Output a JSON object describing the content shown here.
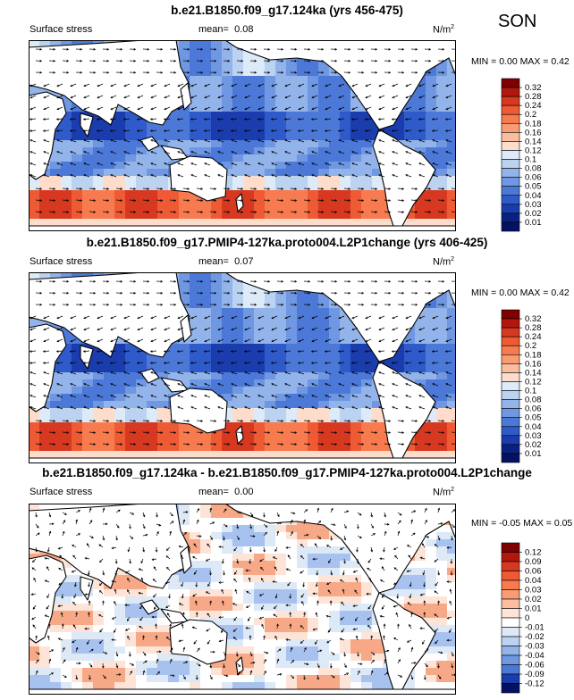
{
  "figure": {
    "season": "SON",
    "unit_base": "N/m",
    "unit_sup": "2"
  },
  "chart_data": [
    {
      "type": "heatmap",
      "title": "b.e21.B1850.f09_g17.124ka (yrs 456-475)",
      "variable_label": "Surface stress",
      "mean_label": "mean=",
      "mean": "0.08",
      "minmax": {
        "min_label": "MIN =",
        "min": "0.00",
        "max_label": "MAX =",
        "max": "0.42"
      },
      "colorbar": {
        "levels": [
          "0.32",
          "0.28",
          "0.24",
          "0.2",
          "0.18",
          "0.16",
          "0.14",
          "0.12",
          "0.1",
          "0.08",
          "0.06",
          "0.05",
          "0.04",
          "0.03",
          "0.02",
          "0.01"
        ],
        "colors": [
          "#7f0000",
          "#b2170e",
          "#d73820",
          "#ee5a33",
          "#f77b4e",
          "#f99c74",
          "#fbbca0",
          "#fddccb",
          "#ddeaf8",
          "#bcd2f1",
          "#93b4ea",
          "#6f97e2",
          "#4c79d8",
          "#2f5ac9",
          "#1a3cad",
          "#0a2183",
          "#051264"
        ]
      }
    },
    {
      "type": "heatmap",
      "title": "b.e21.B1850.f09_g17.PMIP4-127ka.proto004.L2P1change (yrs 406-425)",
      "variable_label": "Surface stress",
      "mean_label": "mean=",
      "mean": "0.07",
      "minmax": {
        "min_label": "MIN =",
        "min": "0.00",
        "max_label": "MAX =",
        "max": "0.42"
      },
      "colorbar": {
        "levels": [
          "0.32",
          "0.28",
          "0.24",
          "0.2",
          "0.18",
          "0.16",
          "0.14",
          "0.12",
          "0.1",
          "0.08",
          "0.06",
          "0.05",
          "0.04",
          "0.03",
          "0.02",
          "0.01"
        ],
        "colors": [
          "#7f0000",
          "#b2170e",
          "#d73820",
          "#ee5a33",
          "#f77b4e",
          "#f99c74",
          "#fbbca0",
          "#fddccb",
          "#ddeaf8",
          "#bcd2f1",
          "#93b4ea",
          "#6f97e2",
          "#4c79d8",
          "#2f5ac9",
          "#1a3cad",
          "#0a2183",
          "#051264"
        ]
      }
    },
    {
      "type": "heatmap",
      "title": "b.e21.B1850.f09_g17.124ka - b.e21.B1850.f09_g17.PMIP4-127ka.proto004.L2P1change",
      "variable_label": "Surface stress",
      "mean_label": "mean=",
      "mean": "0.00",
      "minmax": {
        "min_label": "MIN =",
        "min": "-0.05",
        "max_label": "MAX =",
        "max": "0.05"
      },
      "colorbar": {
        "levels": [
          "0.12",
          "0.09",
          "0.06",
          "0.04",
          "0.03",
          "0.02",
          "0.01",
          "0",
          "-0.01",
          "-0.02",
          "-0.03",
          "-0.04",
          "-0.06",
          "-0.09",
          "-0.12"
        ],
        "colors": [
          "#7f0000",
          "#b2170e",
          "#d73820",
          "#ee5a33",
          "#f77b4e",
          "#f99c74",
          "#fbbca0",
          "#fde4d6",
          "#ffffff",
          "#dde9f7",
          "#bcd2f1",
          "#93b4ea",
          "#6f97e2",
          "#4c79d8",
          "#1a3cad",
          "#051264"
        ]
      }
    }
  ]
}
